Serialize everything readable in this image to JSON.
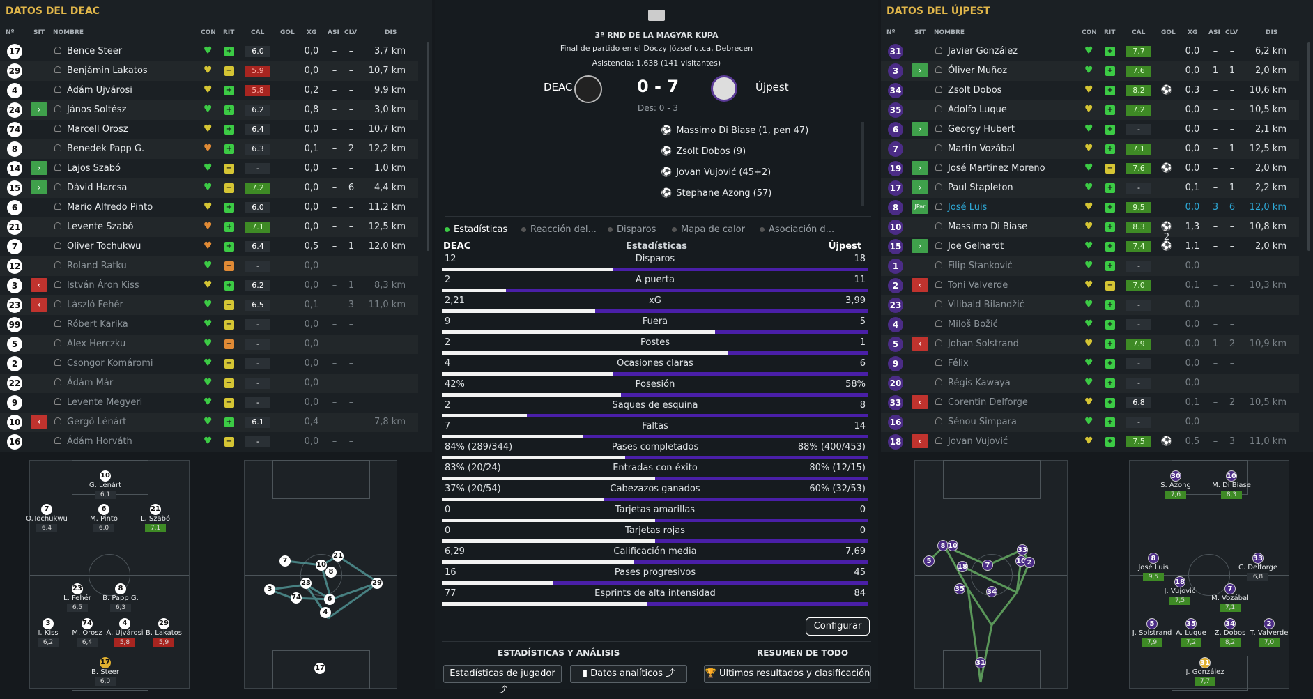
{
  "left": {
    "title": "DATOS DEL DEAC",
    "headers": {
      "num": "Nº",
      "sit": "SIT",
      "name": "NOMBRE",
      "con": "CON",
      "rit": "RIT",
      "cal": "CAL",
      "gol": "GOL",
      "xg": "XG",
      "asi": "ASI",
      "clv": "CLV",
      "dis": "DIS"
    },
    "players": [
      {
        "n": "17",
        "sit": "",
        "name": "Bence Steer",
        "con": "g",
        "rit": "g",
        "cal": "6.0",
        "calc": "",
        "gol": "",
        "xg": "0,0",
        "asi": "–",
        "clv": "–",
        "dis": "3,7 km",
        "dim": false
      },
      {
        "n": "29",
        "sit": "",
        "name": "Benjámin Lakatos",
        "con": "y",
        "rit": "y",
        "cal": "5.9",
        "calc": "r",
        "gol": "",
        "xg": "0,0",
        "asi": "–",
        "clv": "–",
        "dis": "10,7 km",
        "dim": false
      },
      {
        "n": "4",
        "sit": "",
        "name": "Ádám Ujvárosi",
        "con": "y",
        "rit": "g",
        "cal": "5.8",
        "calc": "r",
        "gol": "",
        "xg": "0,2",
        "asi": "–",
        "clv": "–",
        "dis": "9,9 km",
        "dim": false
      },
      {
        "n": "24",
        "sit": "in",
        "name": "János Soltész",
        "con": "g",
        "rit": "g",
        "cal": "6.2",
        "calc": "",
        "gol": "",
        "xg": "0,8",
        "asi": "–",
        "clv": "–",
        "dis": "3,0 km",
        "dim": false
      },
      {
        "n": "74",
        "sit": "",
        "name": "Marcell Orosz",
        "con": "y",
        "rit": "g",
        "cal": "6.4",
        "calc": "",
        "gol": "",
        "xg": "0,0",
        "asi": "–",
        "clv": "–",
        "dis": "10,7 km",
        "dim": false
      },
      {
        "n": "8",
        "sit": "",
        "name": "Benedek Papp G.",
        "con": "o",
        "rit": "g",
        "cal": "6.3",
        "calc": "",
        "gol": "",
        "xg": "0,1",
        "asi": "–",
        "clv": "2",
        "dis": "12,2 km",
        "dim": false
      },
      {
        "n": "14",
        "sit": "in",
        "name": "Lajos Szabó",
        "con": "g",
        "rit": "y",
        "cal": "-",
        "calc": "",
        "gol": "",
        "xg": "0,0",
        "asi": "–",
        "clv": "–",
        "dis": "1,0 km",
        "dim": false
      },
      {
        "n": "15",
        "sit": "in",
        "name": "Dávid Harcsa",
        "con": "g",
        "rit": "y",
        "cal": "7.2",
        "calc": "g",
        "gol": "",
        "xg": "0,0",
        "asi": "–",
        "clv": "6",
        "dis": "4,4 km",
        "dim": false
      },
      {
        "n": "6",
        "sit": "",
        "name": "Mario Alfredo Pinto",
        "con": "y",
        "rit": "g",
        "cal": "6.0",
        "calc": "",
        "gol": "",
        "xg": "0,0",
        "asi": "–",
        "clv": "–",
        "dis": "11,2 km",
        "dim": false
      },
      {
        "n": "21",
        "sit": "",
        "name": "Levente Szabó",
        "con": "o",
        "rit": "g",
        "cal": "7.1",
        "calc": "g",
        "gol": "",
        "xg": "0,0",
        "asi": "–",
        "clv": "–",
        "dis": "12,5 km",
        "dim": false
      },
      {
        "n": "7",
        "sit": "",
        "name": "Oliver Tochukwu",
        "con": "o",
        "rit": "g",
        "cal": "6.4",
        "calc": "",
        "gol": "",
        "xg": "0,5",
        "asi": "–",
        "clv": "1",
        "dis": "12,0 km",
        "dim": false
      },
      {
        "n": "12",
        "sit": "",
        "name": "Roland Ratku",
        "con": "g",
        "rit": "o",
        "cal": "-",
        "calc": "",
        "gol": "",
        "xg": "0,0",
        "asi": "–",
        "clv": "–",
        "dis": "",
        "dim": true
      },
      {
        "n": "3",
        "sit": "out",
        "name": "István Áron Kiss",
        "con": "y",
        "rit": "g",
        "cal": "6.2",
        "calc": "",
        "gol": "",
        "xg": "0,0",
        "asi": "–",
        "clv": "1",
        "dis": "8,3 km",
        "dim": true
      },
      {
        "n": "23",
        "sit": "out",
        "name": "László Fehér",
        "con": "g",
        "rit": "y",
        "cal": "6.5",
        "calc": "",
        "gol": "",
        "xg": "0,1",
        "asi": "–",
        "clv": "3",
        "dis": "11,0 km",
        "dim": true
      },
      {
        "n": "99",
        "sit": "",
        "name": "Róbert Karika",
        "con": "g",
        "rit": "y",
        "cal": "-",
        "calc": "",
        "gol": "",
        "xg": "0,0",
        "asi": "–",
        "clv": "–",
        "dis": "",
        "dim": true
      },
      {
        "n": "5",
        "sit": "",
        "name": "Alex Herczku",
        "con": "g",
        "rit": "o",
        "cal": "-",
        "calc": "",
        "gol": "",
        "xg": "0,0",
        "asi": "–",
        "clv": "–",
        "dis": "",
        "dim": true
      },
      {
        "n": "2",
        "sit": "",
        "name": "Csongor Komáromi",
        "con": "g",
        "rit": "y",
        "cal": "-",
        "calc": "",
        "gol": "",
        "xg": "0,0",
        "asi": "–",
        "clv": "–",
        "dis": "",
        "dim": true
      },
      {
        "n": "22",
        "sit": "",
        "name": "Ádám Már",
        "con": "g",
        "rit": "y",
        "cal": "-",
        "calc": "",
        "gol": "",
        "xg": "0,0",
        "asi": "–",
        "clv": "–",
        "dis": "",
        "dim": true
      },
      {
        "n": "9",
        "sit": "",
        "name": "Levente Megyeri",
        "con": "g",
        "rit": "y",
        "cal": "-",
        "calc": "",
        "gol": "",
        "xg": "0,0",
        "asi": "–",
        "clv": "–",
        "dis": "",
        "dim": true
      },
      {
        "n": "10",
        "sit": "out",
        "name": "Gergő Lénárt",
        "con": "g",
        "rit": "g",
        "cal": "6.1",
        "calc": "",
        "gol": "",
        "xg": "0,4",
        "asi": "–",
        "clv": "–",
        "dis": "7,8 km",
        "dim": true
      },
      {
        "n": "16",
        "sit": "",
        "name": "Ádám Horváth",
        "con": "g",
        "rit": "y",
        "cal": "-",
        "calc": "",
        "gol": "",
        "xg": "0,0",
        "asi": "–",
        "clv": "–",
        "dis": "",
        "dim": true
      }
    ]
  },
  "right": {
    "title": "DATOS DEL ÚJPEST",
    "headers": {
      "num": "Nº",
      "sit": "SIT",
      "name": "NOMBRE",
      "con": "CON",
      "rit": "RIT",
      "cal": "CAL",
      "gol": "GOL",
      "xg": "XG",
      "asi": "ASI",
      "clv": "CLV",
      "dis": "DIS"
    },
    "players": [
      {
        "n": "31",
        "sit": "",
        "name": "Javier González",
        "con": "g",
        "rit": "g",
        "cal": "7.7",
        "calc": "g",
        "gol": "",
        "xg": "0,0",
        "asi": "–",
        "clv": "–",
        "dis": "6,2 km",
        "dim": false
      },
      {
        "n": "3",
        "sit": "in",
        "name": "Óliver Muñoz",
        "con": "g",
        "rit": "g",
        "cal": "7.6",
        "calc": "g",
        "gol": "",
        "xg": "0,0",
        "asi": "1",
        "clv": "1",
        "dis": "2,0 km",
        "dim": false
      },
      {
        "n": "34",
        "sit": "",
        "name": "Zsolt Dobos",
        "con": "y",
        "rit": "g",
        "cal": "8.2",
        "calc": "g",
        "gol": "⚽",
        "xg": "0,3",
        "asi": "–",
        "clv": "–",
        "dis": "10,6 km",
        "dim": false
      },
      {
        "n": "35",
        "sit": "",
        "name": "Adolfo Luque",
        "con": "y",
        "rit": "g",
        "cal": "7.2",
        "calc": "g",
        "gol": "",
        "xg": "0,0",
        "asi": "–",
        "clv": "–",
        "dis": "10,5 km",
        "dim": false
      },
      {
        "n": "6",
        "sit": "in",
        "name": "Georgy Hubert",
        "con": "g",
        "rit": "g",
        "cal": "-",
        "calc": "",
        "gol": "",
        "xg": "0,0",
        "asi": "–",
        "clv": "–",
        "dis": "2,1 km",
        "dim": false
      },
      {
        "n": "7",
        "sit": "",
        "name": "Martin Vozábal",
        "con": "y",
        "rit": "g",
        "cal": "7.1",
        "calc": "g",
        "gol": "",
        "xg": "0,0",
        "asi": "–",
        "clv": "1",
        "dis": "12,5 km",
        "dim": false
      },
      {
        "n": "19",
        "sit": "in",
        "name": "José Martínez Moreno",
        "con": "g",
        "rit": "y",
        "cal": "7.6",
        "calc": "g",
        "gol": "⚽",
        "xg": "0,0",
        "asi": "–",
        "clv": "–",
        "dis": "2,0 km",
        "dim": false
      },
      {
        "n": "17",
        "sit": "in",
        "name": "Paul Stapleton",
        "con": "g",
        "rit": "g",
        "cal": "-",
        "calc": "",
        "gol": "",
        "xg": "0,1",
        "asi": "–",
        "clv": "1",
        "dis": "2,2 km",
        "dim": false
      },
      {
        "n": "8",
        "sit": "cap",
        "name": "José Luis",
        "con": "y",
        "rit": "g",
        "cal": "9.5",
        "calc": "g",
        "gol": "",
        "xg": "0,0",
        "asi": "3",
        "clv": "6",
        "dis": "12,0 km",
        "dim": false,
        "hl": true
      },
      {
        "n": "10",
        "sit": "",
        "name": "Massimo Di Biase",
        "con": "y",
        "rit": "g",
        "cal": "8.3",
        "calc": "g",
        "gol": "⚽2",
        "xg": "1,3",
        "asi": "–",
        "clv": "–",
        "dis": "10,8 km",
        "dim": false
      },
      {
        "n": "15",
        "sit": "in",
        "name": "Joe Gelhardt",
        "con": "g",
        "rit": "g",
        "cal": "7.4",
        "calc": "g",
        "gol": "⚽",
        "xg": "1,1",
        "asi": "–",
        "clv": "–",
        "dis": "2,0 km",
        "dim": false
      },
      {
        "n": "1",
        "sit": "",
        "name": "Filip Stanković",
        "con": "g",
        "rit": "g",
        "cal": "-",
        "calc": "",
        "gol": "",
        "xg": "0,0",
        "asi": "–",
        "clv": "–",
        "dis": "",
        "dim": true
      },
      {
        "n": "2",
        "sit": "out",
        "name": "Toni Valverde",
        "con": "y",
        "rit": "y",
        "cal": "7.0",
        "calc": "g",
        "gol": "",
        "xg": "0,1",
        "asi": "–",
        "clv": "–",
        "dis": "10,3 km",
        "dim": true
      },
      {
        "n": "23",
        "sit": "",
        "name": "Vilibald Bilandžić",
        "con": "g",
        "rit": "g",
        "cal": "-",
        "calc": "",
        "gol": "",
        "xg": "0,0",
        "asi": "–",
        "clv": "–",
        "dis": "",
        "dim": true
      },
      {
        "n": "4",
        "sit": "",
        "name": "Miloš Božić",
        "con": "g",
        "rit": "g",
        "cal": "-",
        "calc": "",
        "gol": "",
        "xg": "0,0",
        "asi": "–",
        "clv": "–",
        "dis": "",
        "dim": true
      },
      {
        "n": "5",
        "sit": "out",
        "name": "Johan Solstrand",
        "con": "y",
        "rit": "g",
        "cal": "7.9",
        "calc": "g",
        "gol": "",
        "xg": "0,0",
        "asi": "1",
        "clv": "2",
        "dis": "10,9 km",
        "dim": true
      },
      {
        "n": "9",
        "sit": "",
        "name": "Félix",
        "con": "g",
        "rit": "g",
        "cal": "-",
        "calc": "",
        "gol": "",
        "xg": "0,0",
        "asi": "–",
        "clv": "–",
        "dis": "",
        "dim": true
      },
      {
        "n": "20",
        "sit": "",
        "name": "Régis Kawaya",
        "con": "g",
        "rit": "g",
        "cal": "-",
        "calc": "",
        "gol": "",
        "xg": "0,0",
        "asi": "–",
        "clv": "–",
        "dis": "",
        "dim": true
      },
      {
        "n": "33",
        "sit": "out",
        "name": "Corentin Delforge",
        "con": "y",
        "rit": "g",
        "cal": "6.8",
        "calc": "",
        "gol": "",
        "xg": "0,1",
        "asi": "–",
        "clv": "2",
        "dis": "10,5 km",
        "dim": true
      },
      {
        "n": "16",
        "sit": "",
        "name": "Sénou Simpara",
        "con": "g",
        "rit": "g",
        "cal": "-",
        "calc": "",
        "gol": "",
        "xg": "0,0",
        "asi": "–",
        "clv": "–",
        "dis": "",
        "dim": true
      },
      {
        "n": "18",
        "sit": "out",
        "name": "Jovan Vujović",
        "con": "y",
        "rit": "g",
        "cal": "7.5",
        "calc": "g",
        "gol": "⚽",
        "xg": "0,5",
        "asi": "–",
        "clv": "3",
        "dis": "11,0 km",
        "dim": true
      }
    ]
  },
  "match": {
    "competition": "3ª RND DE LA MAGYAR KUPA",
    "venue": "Final de partido en el Dóczy József utca, Debrecen",
    "attendance": "Asistencia: 1.638 (141 visitantes)",
    "home": "DEAC",
    "away": "Újpest",
    "score": "0 - 7",
    "halftime": "Des: 0 - 3",
    "scorers": [
      "Massimo Di Biase (1, pen 47)",
      "Zsolt Dobos (9)",
      "Jovan Vujović (45+2)",
      "Stephane Azong (57)"
    ]
  },
  "tabs": [
    "Estadísticas",
    "Reacción del...",
    "Disparos",
    "Mapa de calor",
    "Asociación d..."
  ],
  "stats": {
    "home": "DEAC",
    "title": "Estadísticas",
    "away": "Újpest",
    "rows": [
      {
        "l": "12",
        "label": "Disparos",
        "r": "18",
        "lw": 0.4,
        "rw": 0.6
      },
      {
        "l": "2",
        "label": "A puerta",
        "r": "11",
        "lw": 0.15,
        "rw": 0.85
      },
      {
        "l": "2,21",
        "label": "xG",
        "r": "3,99",
        "lw": 0.36,
        "rw": 0.64
      },
      {
        "l": "9",
        "label": "Fuera",
        "r": "5",
        "lw": 0.64,
        "rw": 0.36
      },
      {
        "l": "2",
        "label": "Postes",
        "r": "1",
        "lw": 0.67,
        "rw": 0.33
      },
      {
        "l": "4",
        "label": "Ocasiones claras",
        "r": "6",
        "lw": 0.4,
        "rw": 0.6
      },
      {
        "l": "42%",
        "label": "Posesión",
        "r": "58%",
        "lw": 0.42,
        "rw": 0.58
      },
      {
        "l": "2",
        "label": "Saques de esquina",
        "r": "8",
        "lw": 0.2,
        "rw": 0.8
      },
      {
        "l": "7",
        "label": "Faltas",
        "r": "14",
        "lw": 0.33,
        "rw": 0.67
      },
      {
        "l": "84% (289/344)",
        "label": "Pases completados",
        "r": "88% (400/453)",
        "lw": 0.43,
        "rw": 0.57
      },
      {
        "l": "83% (20/24)",
        "label": "Entradas con éxito",
        "r": "80% (12/15)",
        "lw": 0.5,
        "rw": 0.5
      },
      {
        "l": "37% (20/54)",
        "label": "Cabezazos ganados",
        "r": "60% (32/53)",
        "lw": 0.38,
        "rw": 0.62
      },
      {
        "l": "0",
        "label": "Tarjetas amarillas",
        "r": "0",
        "lw": 0.5,
        "rw": 0.5
      },
      {
        "l": "0",
        "label": "Tarjetas rojas",
        "r": "0",
        "lw": 0.5,
        "rw": 0.5
      },
      {
        "l": "6,29",
        "label": "Calificación media",
        "r": "7,69",
        "lw": 0.45,
        "rw": 0.55
      },
      {
        "l": "16",
        "label": "Pases progresivos",
        "r": "45",
        "lw": 0.26,
        "rw": 0.74
      },
      {
        "l": "77",
        "label": "Esprints de alta intensidad",
        "r": "84",
        "lw": 0.48,
        "rw": 0.52
      }
    ]
  },
  "footer": {
    "configure": "Configurar",
    "sect1": "ESTADÍSTICAS Y ANÁLISIS",
    "sect2": "RESUMEN DE TODO",
    "btn1": "Estadísticas de jugador",
    "btn2": "Datos analíticos",
    "btn3": "Últimos resultados y clasificación"
  },
  "formation_left": [
    {
      "n": "10",
      "name": "G. Lénárt",
      "rat": "6,1"
    },
    {
      "n": "7",
      "name": "O.Tochukwu",
      "rat": "6,4"
    },
    {
      "n": "6",
      "name": "M. Pinto",
      "rat": "6,0"
    },
    {
      "n": "21",
      "name": "L. Szabó",
      "rat": "7,1"
    },
    {
      "n": "23",
      "name": "L. Fehér",
      "rat": "6,5"
    },
    {
      "n": "8",
      "name": "B. Papp G.",
      "rat": "6,3"
    },
    {
      "n": "3",
      "name": "I. Kiss",
      "rat": "6,2"
    },
    {
      "n": "74",
      "name": "M. Orosz",
      "rat": "6,4"
    },
    {
      "n": "4",
      "name": "Á. Ujvárosi",
      "rat": "5,8"
    },
    {
      "n": "29",
      "name": "B. Lakatos",
      "rat": "5,9"
    },
    {
      "n": "17",
      "name": "B. Steer",
      "rat": "6,0"
    }
  ],
  "formation_right": [
    {
      "n": "30",
      "name": "S. Azong",
      "rat": "7,6"
    },
    {
      "n": "10",
      "name": "M. Di Biase",
      "rat": "8,3"
    },
    {
      "n": "8",
      "name": "José Luis",
      "rat": "9,5"
    },
    {
      "n": "33",
      "name": "C. Delforge",
      "rat": "6,8"
    },
    {
      "n": "18",
      "name": "J. Vujović",
      "rat": "7,5"
    },
    {
      "n": "7",
      "name": "M. Vozábal",
      "rat": "7,1"
    },
    {
      "n": "5",
      "name": "J. Solstrand",
      "rat": "7,9"
    },
    {
      "n": "35",
      "name": "A. Luque",
      "rat": "7,2"
    },
    {
      "n": "34",
      "name": "Z. Dobos",
      "rat": "8,2"
    },
    {
      "n": "2",
      "name": "T. Valverde",
      "rat": "7,0"
    },
    {
      "n": "31",
      "name": "J. González",
      "rat": "7,7"
    }
  ],
  "colors": {
    "accent": "#e0b64a",
    "green": "#3ccb45",
    "purple": "#4a1fa8",
    "red": "#a82520"
  }
}
